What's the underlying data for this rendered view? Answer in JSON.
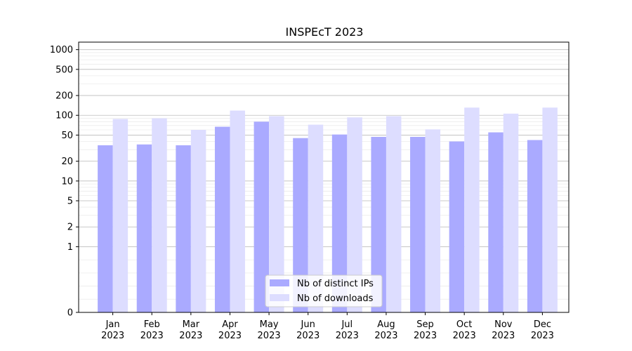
{
  "chart_data": {
    "type": "bar",
    "title": "INSPEcT 2023",
    "xlabel": "",
    "ylabel": "",
    "categories": [
      {
        "month": "Jan",
        "year": "2023"
      },
      {
        "month": "Feb",
        "year": "2023"
      },
      {
        "month": "Mar",
        "year": "2023"
      },
      {
        "month": "Apr",
        "year": "2023"
      },
      {
        "month": "May",
        "year": "2023"
      },
      {
        "month": "Jun",
        "year": "2023"
      },
      {
        "month": "Jul",
        "year": "2023"
      },
      {
        "month": "Aug",
        "year": "2023"
      },
      {
        "month": "Sep",
        "year": "2023"
      },
      {
        "month": "Oct",
        "year": "2023"
      },
      {
        "month": "Nov",
        "year": "2023"
      },
      {
        "month": "Dec",
        "year": "2023"
      }
    ],
    "series": [
      {
        "name": "Nb of distinct IPs",
        "color": "#aaaaff",
        "values": [
          35,
          36,
          35,
          67,
          80,
          45,
          51,
          47,
          47,
          40,
          55,
          42
        ]
      },
      {
        "name": "Nb of downloads",
        "color": "#ddddff",
        "values": [
          88,
          90,
          60,
          118,
          97,
          72,
          93,
          97,
          61,
          131,
          106,
          131
        ]
      }
    ],
    "y_scale": "symlog",
    "ylim": [
      0,
      1300
    ],
    "yticks": [
      0,
      1,
      2,
      5,
      10,
      20,
      50,
      100,
      200,
      500,
      1000
    ],
    "ytick_labels": [
      "0",
      "1",
      "2",
      "5",
      "10",
      "20",
      "50",
      "100",
      "200",
      "500",
      "1000"
    ],
    "grid": true,
    "legend_position": "bottom-center"
  }
}
